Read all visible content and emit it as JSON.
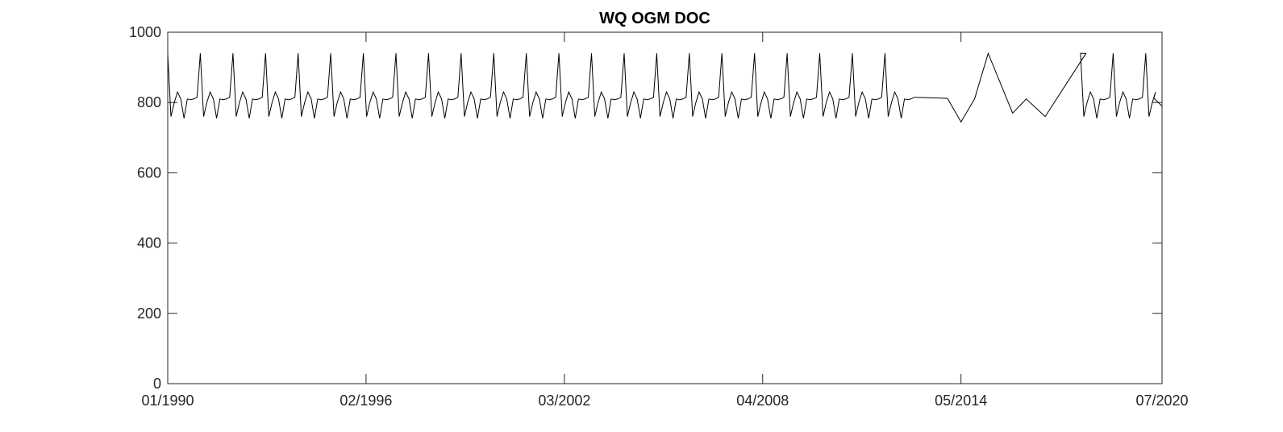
{
  "chart_data": {
    "type": "line",
    "title": "WQ OGM DOC",
    "xlabel": "",
    "ylabel": "",
    "xlim": [
      "1990-01",
      "2020-07"
    ],
    "ylim": [
      0,
      1000
    ],
    "yticks": [
      0,
      200,
      400,
      600,
      800,
      1000
    ],
    "xtick_labels": [
      "01/1990",
      "02/1996",
      "03/2002",
      "04/2008",
      "05/2014",
      "07/2020"
    ],
    "grid": false,
    "legend": "none",
    "line_color": "#000000",
    "cycle_values": [
      940,
      760,
      800,
      830,
      810,
      755,
      810,
      808,
      810,
      815
    ],
    "cycle_years": 1,
    "regular_cycles_1": [
      1990,
      2013
    ],
    "irregular_segment": [
      {
        "x": "2013-12",
        "y": 812
      },
      {
        "x": "2014-05",
        "y": 745
      },
      {
        "x": "2014-10",
        "y": 810
      },
      {
        "x": "2015-03",
        "y": 940
      },
      {
        "x": "2015-12",
        "y": 770
      },
      {
        "x": "2016-05",
        "y": 810
      },
      {
        "x": "2016-12",
        "y": 760
      },
      {
        "x": "2018-03",
        "y": 940
      }
    ],
    "regular_cycles_2": [
      2018,
      2020
    ],
    "final_points": [
      {
        "x": "2020-04",
        "y": 812
      },
      {
        "x": "2020-07",
        "y": 790
      }
    ]
  }
}
